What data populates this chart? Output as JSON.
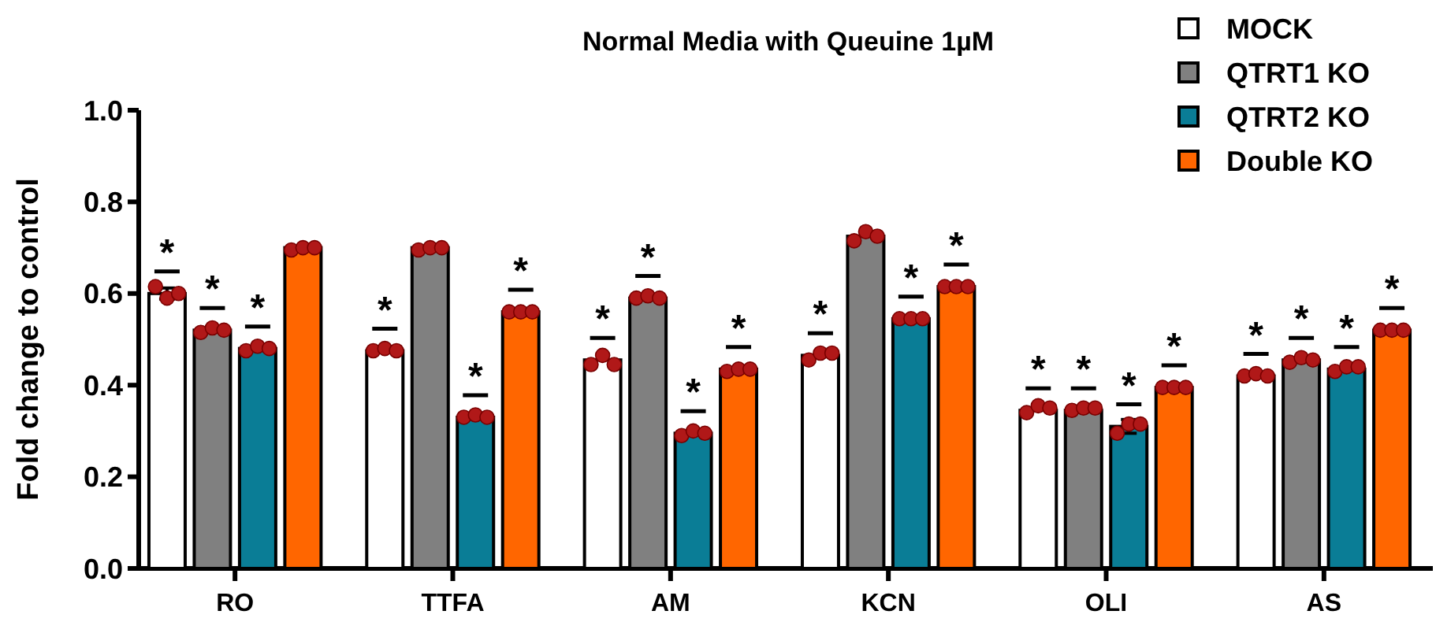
{
  "chart_data": {
    "type": "bar",
    "title": "Normal Media with Queuine 1µM",
    "ylabel": "Fold change to control",
    "categories": [
      "RO",
      "TTFA",
      "AM",
      "KCN",
      "OLI",
      "AS"
    ],
    "ylim": [
      0,
      1.0
    ],
    "yticks": [
      {
        "value": 0,
        "label": "0.0"
      },
      0.2,
      0.4,
      0.6,
      0.8,
      {
        "value": 1,
        "label": "1.0"
      }
    ],
    "legend": "top right",
    "grid": false,
    "series": [
      {
        "name": "MOCK",
        "color": "#ffffff",
        "values": [
          0.6,
          0.475,
          0.455,
          0.465,
          0.345,
          0.42
        ],
        "errors": [
          0.012,
          null,
          null,
          null,
          null,
          null
        ],
        "value_labels": [
          "*",
          "*",
          "*",
          "*",
          "*",
          "*"
        ]
      },
      {
        "name": "QTRT1 KO",
        "color": "#808080",
        "values": [
          0.52,
          0.7,
          0.59,
          0.725,
          0.345,
          0.455
        ],
        "value_labels": [
          "*",
          null,
          "*",
          null,
          "*",
          "*"
        ]
      },
      {
        "name": "QTRT2 KO",
        "color": "#0a7d96",
        "values": [
          0.48,
          0.33,
          0.295,
          0.545,
          0.31,
          0.435
        ],
        "errors": [
          null,
          null,
          null,
          null,
          0.015,
          null
        ],
        "value_labels": [
          "*",
          "*",
          "*",
          "*",
          "*",
          "*"
        ]
      },
      {
        "name": "Double KO",
        "color": "#ff6600",
        "values": [
          0.7,
          0.56,
          0.435,
          0.615,
          0.395,
          0.52
        ],
        "value_labels": [
          null,
          "*",
          "*",
          "*",
          "*",
          "*"
        ]
      },
      {
        "type": "scatter",
        "color": "#b01818",
        "marker": "circle",
        "x": [
          "RO",
          "RO",
          "RO",
          "TTFA",
          "TTFA",
          "TTFA",
          "AM",
          "AM",
          "AM",
          "KCN",
          "KCN",
          "KCN",
          "OLI",
          "OLI",
          "OLI",
          "AS",
          "AS",
          "AS"
        ],
        "values": [
          0.615,
          0.59,
          0.6,
          0.475,
          0.48,
          0.475,
          0.445,
          0.465,
          0.445,
          0.455,
          0.47,
          0.47,
          0.34,
          0.355,
          0.35,
          0.42,
          0.425,
          0.42
        ]
      },
      {
        "type": "scatter",
        "color": "#b01818",
        "marker": "circle",
        "x": [
          "RO",
          "RO",
          "RO",
          "TTFA",
          "TTFA",
          "TTFA",
          "AM",
          "AM",
          "AM",
          "KCN",
          "KCN",
          "KCN",
          "OLI",
          "OLI",
          "OLI",
          "AS",
          "AS",
          "AS"
        ],
        "values": [
          0.515,
          0.525,
          0.52,
          0.695,
          0.7,
          0.7,
          0.59,
          0.595,
          0.59,
          0.715,
          0.735,
          0.725,
          0.345,
          0.35,
          0.35,
          0.45,
          0.46,
          0.455
        ]
      },
      {
        "type": "scatter",
        "color": "#b01818",
        "marker": "circle",
        "x": [
          "RO",
          "RO",
          "RO",
          "TTFA",
          "TTFA",
          "TTFA",
          "AM",
          "AM",
          "AM",
          "KCN",
          "KCN",
          "KCN",
          "OLI",
          "OLI",
          "OLI",
          "AS",
          "AS",
          "AS"
        ],
        "values": [
          0.475,
          0.485,
          0.48,
          0.33,
          0.335,
          0.33,
          0.29,
          0.3,
          0.295,
          0.545,
          0.545,
          0.545,
          0.295,
          0.315,
          0.315,
          0.43,
          0.44,
          0.44
        ]
      },
      {
        "type": "scatter",
        "color": "#b01818",
        "marker": "circle",
        "x": [
          "RO",
          "RO",
          "RO",
          "TTFA",
          "TTFA",
          "TTFA",
          "AM",
          "AM",
          "AM",
          "KCN",
          "KCN",
          "KCN",
          "OLI",
          "OLI",
          "OLI",
          "AS",
          "AS",
          "AS"
        ],
        "values": [
          0.695,
          0.7,
          0.7,
          0.56,
          0.56,
          0.56,
          0.43,
          0.435,
          0.435,
          0.615,
          0.615,
          0.615,
          0.395,
          0.395,
          0.395,
          0.52,
          0.52,
          0.52
        ]
      }
    ]
  }
}
